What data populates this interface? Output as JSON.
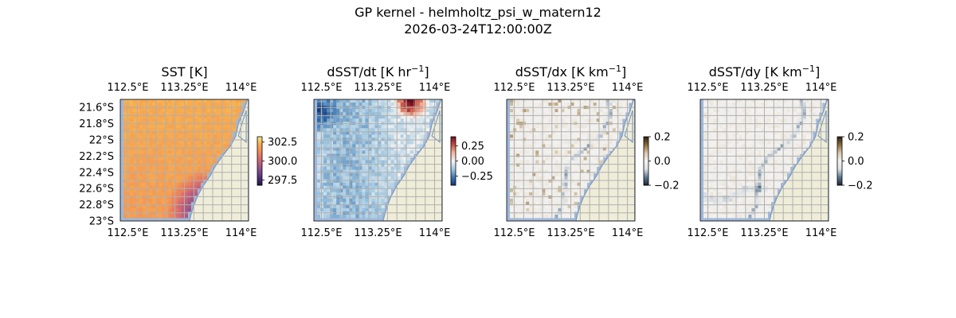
{
  "figure": {
    "title_line1": "GP kernel - helmholtz_psi_w_matern12",
    "title_line2": "2026-03-24T12:00:00Z"
  },
  "colors": {
    "land": "#efedd8",
    "ocean": "#9fb8dc",
    "coast": "#7f9cc4",
    "grid": "#b0b0b0",
    "thermal_colormap": [
      "#1e1540",
      "#4b2f7a",
      "#7d4a8c",
      "#b45c82",
      "#e0706a",
      "#f48f55",
      "#f8b04e",
      "#f3ea8c"
    ],
    "rdbu_colormap": [
      "#163a78",
      "#3f78b3",
      "#a3c9e2",
      "#f5f4f2",
      "#f2b8a0",
      "#c8503f",
      "#6e0c22"
    ],
    "diff_colormap": [
      "#1a2536",
      "#5e7a93",
      "#dfe3e6",
      "#f4f2ef",
      "#d8c9ac",
      "#8b6b3c",
      "#2b1f10"
    ]
  },
  "chart_data": [
    {
      "type": "heatmap",
      "title_base": "SST [K]",
      "title_super": "",
      "title_tail": "",
      "colormap": "thermal",
      "field": "sst",
      "clim": [
        296.8,
        303.2
      ],
      "colorbar_ticks": [
        302.5,
        300.0,
        297.5
      ],
      "colorbar_ticklabels": [
        "302.5",
        "300.0",
        "297.5"
      ],
      "lon_range": [
        112.4,
        114.1
      ],
      "lat_range": [
        -23.0,
        -21.5
      ],
      "xticks": [
        112.5,
        113.25,
        114.0
      ],
      "xticklabels": [
        "112.5°E",
        "113.25°E",
        "114°E"
      ],
      "yticks": [
        -21.6,
        -21.8,
        -22.0,
        -22.2,
        -22.4,
        -22.6,
        -22.8,
        -23.0
      ],
      "yticklabels": [
        "21.6°S",
        "21.8°S",
        "22°S",
        "22.2°S",
        "22.4°S",
        "22.6°S",
        "22.8°S",
        "23°S"
      ],
      "show_yticks": true
    },
    {
      "type": "heatmap",
      "title_base": "dSST/dt [K hr",
      "title_super": "−1",
      "title_tail": "]",
      "colormap": "rdbu",
      "field": "dt",
      "clim": [
        -0.4,
        0.4
      ],
      "colorbar_ticks": [
        0.25,
        0.0,
        -0.25
      ],
      "colorbar_ticklabels": [
        "0.25",
        "0.00",
        "−0.25"
      ],
      "lon_range": [
        112.4,
        114.1
      ],
      "lat_range": [
        -23.0,
        -21.5
      ],
      "xticks": [
        112.5,
        113.25,
        114.0
      ],
      "xticklabels": [
        "112.5°E",
        "113.25°E",
        "114°E"
      ],
      "yticks": [],
      "yticklabels": [],
      "show_yticks": false
    },
    {
      "type": "heatmap",
      "title_base": "dSST/dx [K km",
      "title_super": "−1",
      "title_tail": "]",
      "colormap": "diff",
      "field": "dx",
      "clim": [
        -0.2,
        0.2
      ],
      "colorbar_ticks": [
        0.2,
        0.0,
        -0.2
      ],
      "colorbar_ticklabels": [
        "0.2",
        "0.0",
        "−0.2"
      ],
      "lon_range": [
        112.4,
        114.1
      ],
      "lat_range": [
        -23.0,
        -21.5
      ],
      "xticks": [
        112.5,
        113.25,
        114.0
      ],
      "xticklabels": [
        "112.5°E",
        "113.25°E",
        "114°E"
      ],
      "yticks": [],
      "yticklabels": [],
      "show_yticks": false
    },
    {
      "type": "heatmap",
      "title_base": "dSST/dy [K km",
      "title_super": "−1",
      "title_tail": "]",
      "colormap": "diff",
      "field": "dy",
      "clim": [
        -0.2,
        0.2
      ],
      "colorbar_ticks": [
        0.2,
        0.0,
        -0.2
      ],
      "colorbar_ticklabels": [
        "0.2",
        "0.0",
        "−0.2"
      ],
      "lon_range": [
        112.4,
        114.1
      ],
      "lat_range": [
        -23.0,
        -21.5
      ],
      "xticks": [
        112.5,
        113.25,
        114.0
      ],
      "xticklabels": [
        "112.5°E",
        "113.25°E",
        "114°E"
      ],
      "yticks": [],
      "yticklabels": [],
      "show_yticks": false
    }
  ]
}
